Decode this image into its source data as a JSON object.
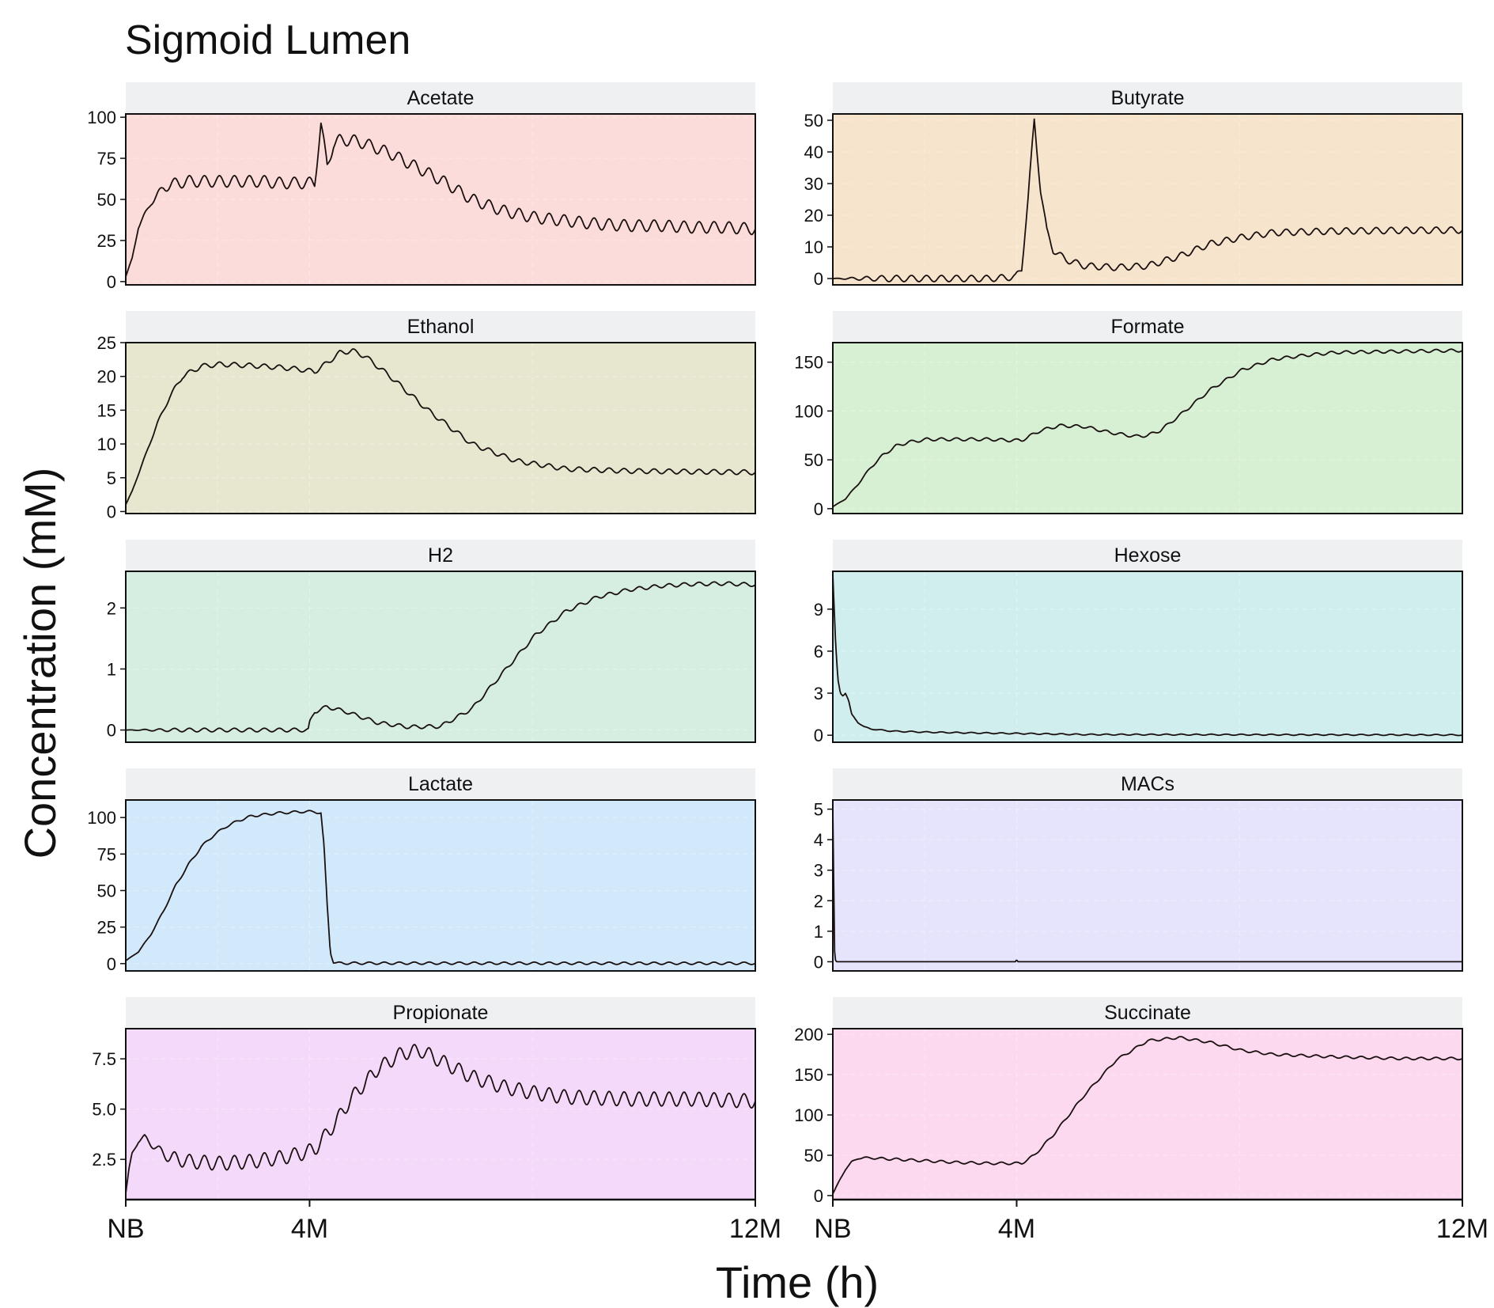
{
  "title": "Sigmoid Lumen",
  "xlabel": "Time (h)",
  "ylabel": "Concentration (mM)",
  "x_ticks": [
    "NB",
    "4M",
    "12M"
  ],
  "colors": {
    "Acetate": "#fcdcdb",
    "Butyrate": "#f6e4cc",
    "Ethanol": "#e7e7cf",
    "Formate": "#d7efd2",
    "H2": "#d5eee1",
    "Hexose": "#d1eeef",
    "Lactate": "#d1e9fb",
    "MACs": "#e6e3fd",
    "Propionate": "#f5d9fb",
    "Succinate": "#fcd9ef",
    "strip": "#eff0f2",
    "line": "#1a1010"
  },
  "chart_data": [
    {
      "type": "line",
      "title": "Acetate",
      "ylim": [
        -2,
        102
      ],
      "yticks": [
        0,
        25,
        50,
        75,
        100
      ],
      "ytick_labels": [
        "0",
        "25",
        "50",
        "75",
        "100"
      ],
      "x": [
        0,
        0.01,
        0.02,
        0.04,
        0.06,
        0.08,
        0.1,
        0.12,
        0.14,
        0.16,
        0.18,
        0.2,
        0.22,
        0.24,
        0.26,
        0.28,
        0.3,
        0.31,
        0.32,
        0.33,
        0.34,
        0.36,
        0.38,
        0.42,
        0.45,
        0.5,
        0.55,
        0.6,
        0.65,
        0.7,
        0.75,
        0.8,
        0.85,
        0.9,
        0.95,
        1.0
      ],
      "y": [
        3,
        14,
        33,
        48,
        57,
        60,
        61,
        61,
        61,
        61,
        61,
        61,
        61,
        60,
        60,
        60,
        60,
        96,
        70,
        84,
        86,
        86,
        84,
        78,
        72,
        62,
        50,
        43,
        39,
        37,
        35,
        34,
        34,
        33,
        33,
        32
      ],
      "ripple": 3.5
    },
    {
      "type": "line",
      "title": "Butyrate",
      "ylim": [
        -2,
        52
      ],
      "yticks": [
        0,
        10,
        20,
        30,
        40,
        50
      ],
      "ytick_labels": [
        "0",
        "10",
        "20",
        "30",
        "40",
        "50"
      ],
      "x": [
        0,
        0.25,
        0.29,
        0.3,
        0.31,
        0.32,
        0.33,
        0.34,
        0.35,
        0.37,
        0.4,
        0.45,
        0.5,
        0.55,
        0.6,
        0.65,
        0.7,
        0.8,
        0.9,
        1.0
      ],
      "y": [
        0,
        0,
        0.5,
        3,
        25,
        50,
        28,
        15,
        9,
        6,
        4,
        3.5,
        4,
        7,
        11,
        13,
        14.5,
        15,
        15.2,
        15.3
      ],
      "ripple": 1.0
    },
    {
      "type": "line",
      "title": "Ethanol",
      "ylim": [
        -0.3,
        25
      ],
      "yticks": [
        0,
        5,
        10,
        15,
        20,
        25
      ],
      "ytick_labels": [
        "0",
        "5",
        "10",
        "15",
        "20",
        "25"
      ],
      "x": [
        0,
        0.01,
        0.03,
        0.05,
        0.07,
        0.09,
        0.12,
        0.15,
        0.2,
        0.25,
        0.28,
        0.3,
        0.32,
        0.34,
        0.36,
        0.38,
        0.42,
        0.48,
        0.55,
        0.62,
        0.7,
        0.8,
        0.9,
        1.0
      ],
      "y": [
        1,
        3,
        8,
        13,
        17,
        20,
        21.5,
        21.8,
        21.6,
        21.3,
        21,
        20.7,
        22,
        23.5,
        23.8,
        23,
        20,
        15,
        10,
        7.5,
        6.3,
        6,
        5.9,
        5.8
      ],
      "ripple": 0.35
    },
    {
      "type": "line",
      "title": "Formate",
      "ylim": [
        -5,
        170
      ],
      "yticks": [
        0,
        50,
        100,
        150
      ],
      "ytick_labels": [
        "0",
        "50",
        "100",
        "150"
      ],
      "x": [
        0,
        0.02,
        0.04,
        0.06,
        0.08,
        0.1,
        0.12,
        0.15,
        0.2,
        0.25,
        0.28,
        0.3,
        0.33,
        0.36,
        0.4,
        0.44,
        0.48,
        0.5,
        0.52,
        0.55,
        0.6,
        0.65,
        0.7,
        0.75,
        0.8,
        0.9,
        1.0
      ],
      "y": [
        2,
        10,
        25,
        42,
        55,
        64,
        68,
        71,
        71,
        71,
        70,
        70,
        80,
        85,
        84,
        78,
        74,
        75,
        80,
        95,
        122,
        142,
        153,
        157,
        160,
        161,
        162
      ],
      "ripple": 1.5
    },
    {
      "type": "line",
      "title": "H2",
      "ylim": [
        -0.2,
        2.6
      ],
      "yticks": [
        0,
        1,
        2
      ],
      "ytick_labels": [
        "0",
        "1",
        "2"
      ],
      "x": [
        0,
        0.29,
        0.292,
        0.3,
        0.32,
        0.35,
        0.4,
        0.45,
        0.5,
        0.55,
        0.6,
        0.65,
        0.7,
        0.75,
        0.8,
        0.85,
        0.9,
        0.95,
        1.0
      ],
      "y": [
        0,
        0,
        0.12,
        0.3,
        0.38,
        0.3,
        0.12,
        0.05,
        0.06,
        0.35,
        0.95,
        1.55,
        1.95,
        2.18,
        2.3,
        2.36,
        2.39,
        2.4,
        2.38
      ],
      "ripple": 0.03
    },
    {
      "type": "line",
      "title": "Hexose",
      "ylim": [
        -0.5,
        11.7
      ],
      "yticks": [
        0,
        3,
        6,
        9
      ],
      "ytick_labels": [
        "0",
        "3",
        "6",
        "9"
      ],
      "x": [
        0,
        0.004,
        0.008,
        0.012,
        0.016,
        0.02,
        0.025,
        0.03,
        0.04,
        0.05,
        0.06,
        0.08,
        0.1,
        0.15,
        0.2,
        0.3,
        0.4,
        1.0
      ],
      "y": [
        11.5,
        7,
        4,
        3,
        2.8,
        3,
        2.5,
        1.5,
        0.9,
        0.6,
        0.45,
        0.35,
        0.28,
        0.22,
        0.18,
        0.12,
        0.05,
        0.02
      ],
      "ripple": 0.04
    },
    {
      "type": "line",
      "title": "Lactate",
      "ylim": [
        -5,
        112
      ],
      "yticks": [
        0,
        25,
        50,
        75,
        100
      ],
      "ytick_labels": [
        "0",
        "25",
        "50",
        "75",
        "100"
      ],
      "x": [
        0,
        0.02,
        0.04,
        0.06,
        0.08,
        0.1,
        0.12,
        0.14,
        0.16,
        0.18,
        0.2,
        0.24,
        0.28,
        0.3,
        0.31,
        0.315,
        0.32,
        0.325,
        0.33,
        0.335,
        1.0
      ],
      "y": [
        2,
        8,
        20,
        36,
        54,
        68,
        80,
        88,
        94,
        98,
        101,
        103,
        104,
        104,
        103,
        80,
        40,
        8,
        1,
        0.3,
        0.2
      ],
      "ripple": 0.8
    },
    {
      "type": "line",
      "title": "MACs",
      "ylim": [
        -0.3,
        5.3
      ],
      "yticks": [
        0,
        1,
        2,
        3,
        4,
        5
      ],
      "ytick_labels": [
        "0",
        "1",
        "2",
        "3",
        "4",
        "5"
      ],
      "x": [
        0,
        0.003,
        0.006,
        0.29,
        0.292,
        0.294,
        1.0
      ],
      "y": [
        5,
        0.1,
        0,
        0,
        0.07,
        0,
        0
      ],
      "ripple": 0
    },
    {
      "type": "line",
      "title": "Propionate",
      "ylim": [
        0.5,
        9
      ],
      "yticks": [
        2.5,
        5,
        7.5
      ],
      "ytick_labels": [
        "2.5",
        "5.0",
        "7.5"
      ],
      "x": [
        0,
        0.005,
        0.01,
        0.02,
        0.03,
        0.04,
        0.05,
        0.07,
        0.1,
        0.15,
        0.2,
        0.25,
        0.28,
        0.3,
        0.33,
        0.36,
        0.4,
        0.44,
        0.47,
        0.5,
        0.55,
        0.6,
        0.65,
        0.7,
        0.8,
        0.9,
        1.0
      ],
      "y": [
        0.8,
        2,
        2.8,
        3.4,
        3.6,
        3.3,
        3.0,
        2.6,
        2.4,
        2.3,
        2.4,
        2.6,
        2.8,
        3.0,
        4.2,
        5.6,
        7,
        7.8,
        7.9,
        7.4,
        6.6,
        6.1,
        5.8,
        5.6,
        5.5,
        5.5,
        5.4
      ],
      "ripple": 0.35
    },
    {
      "type": "line",
      "title": "Succinate",
      "ylim": [
        -5,
        207
      ],
      "yticks": [
        0,
        50,
        100,
        150,
        200
      ],
      "ytick_labels": [
        "0",
        "50",
        "100",
        "150",
        "200"
      ],
      "x": [
        0,
        0.01,
        0.02,
        0.03,
        0.04,
        0.05,
        0.1,
        0.15,
        0.2,
        0.25,
        0.28,
        0.3,
        0.32,
        0.35,
        0.4,
        0.45,
        0.5,
        0.55,
        0.6,
        0.65,
        0.7,
        0.8,
        0.9,
        1.0
      ],
      "y": [
        2,
        18,
        32,
        42,
        46,
        47,
        45,
        43,
        41,
        40,
        40,
        40,
        50,
        75,
        125,
        168,
        192,
        196,
        190,
        180,
        175,
        172,
        170,
        170
      ],
      "ripple": 1.5
    }
  ]
}
